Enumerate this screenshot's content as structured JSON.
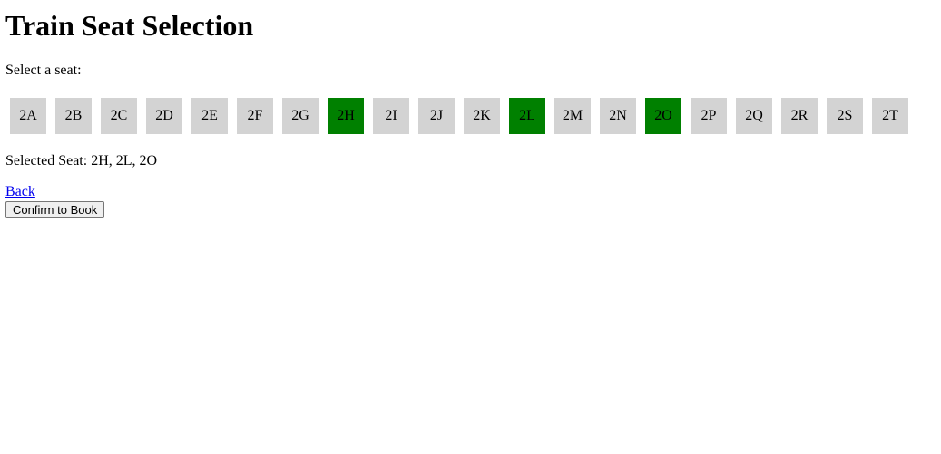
{
  "page": {
    "title": "Train Seat Selection",
    "prompt": "Select a seat:"
  },
  "colors": {
    "available": "#d3d3d3",
    "selected": "#008000",
    "link": "#0000ee"
  },
  "seats": [
    {
      "label": "2A",
      "selected": false
    },
    {
      "label": "2B",
      "selected": false
    },
    {
      "label": "2C",
      "selected": false
    },
    {
      "label": "2D",
      "selected": false
    },
    {
      "label": "2E",
      "selected": false
    },
    {
      "label": "2F",
      "selected": false
    },
    {
      "label": "2G",
      "selected": false
    },
    {
      "label": "2H",
      "selected": true
    },
    {
      "label": "2I",
      "selected": false
    },
    {
      "label": "2J",
      "selected": false
    },
    {
      "label": "2K",
      "selected": false
    },
    {
      "label": "2L",
      "selected": true
    },
    {
      "label": "2M",
      "selected": false
    },
    {
      "label": "2N",
      "selected": false
    },
    {
      "label": "2O",
      "selected": true
    },
    {
      "label": "2P",
      "selected": false
    },
    {
      "label": "2Q",
      "selected": false
    },
    {
      "label": "2R",
      "selected": false
    },
    {
      "label": "2S",
      "selected": false
    },
    {
      "label": "2T",
      "selected": false
    }
  ],
  "selection": {
    "text": "Selected Seat: 2H, 2L, 2O"
  },
  "actions": {
    "back_label": "Back",
    "confirm_label": "Confirm to Book"
  }
}
